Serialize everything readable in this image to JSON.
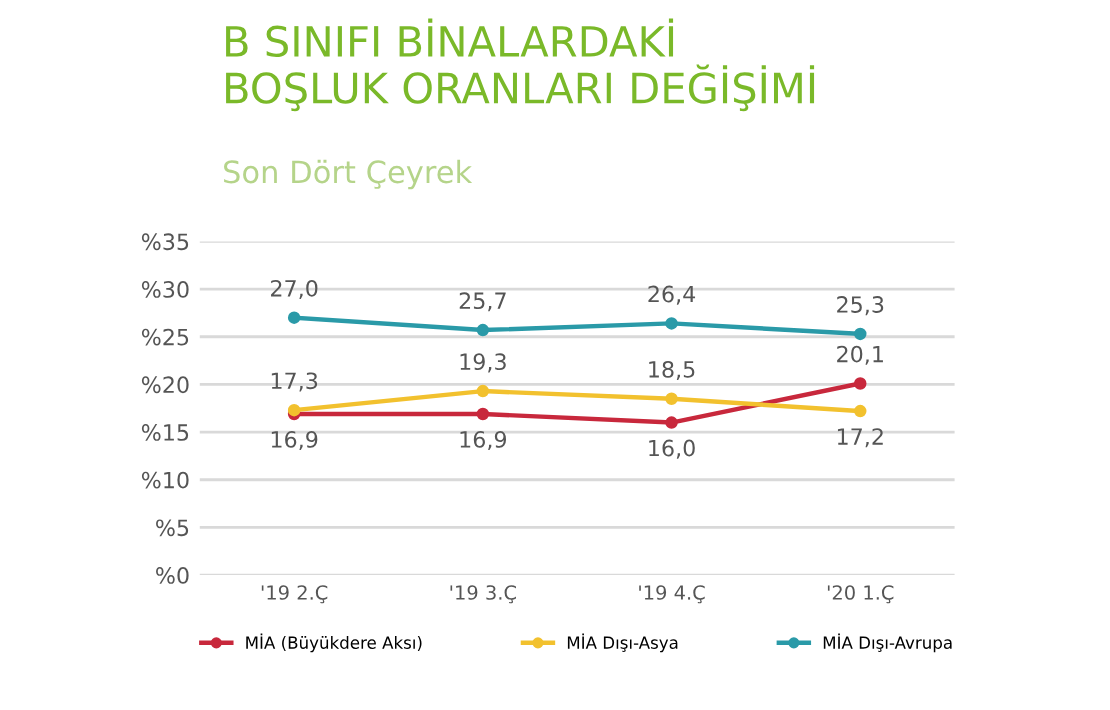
{
  "chart_data": {
    "type": "line",
    "title": "B SINIFI BİNALARDAKİ\nBOŞLUK ORANLARI DEĞİŞİMİ",
    "subtitle": "Son Dört Çeyrek",
    "categories": [
      "'19 2.Ç",
      "'19 3.Ç",
      "'19 4.Ç",
      "'20 1.Ç"
    ],
    "series": [
      {
        "name": "MİA (Büyükdere Aksı)",
        "color": "#c8283c",
        "values": [
          16.9,
          16.9,
          16.0,
          20.1
        ],
        "value_labels": [
          "16,9",
          "16,9",
          "16,0",
          "20,1"
        ]
      },
      {
        "name": "MİA Dışı-Asya",
        "color": "#f2c12e",
        "values": [
          17.3,
          19.3,
          18.5,
          17.2
        ],
        "value_labels": [
          "17,3",
          "19,3",
          "18,5",
          "17,2"
        ]
      },
      {
        "name": "MİA Dışı-Avrupa",
        "color": "#2a9aa8",
        "values": [
          27.0,
          25.7,
          26.4,
          25.3
        ],
        "value_labels": [
          "27,0",
          "25,7",
          "26,4",
          "25,3"
        ]
      }
    ],
    "ylim": [
      0,
      35
    ],
    "yticks": [
      {
        "value": 0,
        "label": "%0"
      },
      {
        "value": 5,
        "label": "%5"
      },
      {
        "value": 10,
        "label": "%10"
      },
      {
        "value": 15,
        "label": "%15"
      },
      {
        "value": 20,
        "label": "%20"
      },
      {
        "value": 25,
        "label": "%25"
      },
      {
        "value": 30,
        "label": "%30"
      },
      {
        "value": 35,
        "label": "%35"
      }
    ],
    "grid": "y",
    "legend": "bottom",
    "marker": "circle",
    "line_style": "solid"
  }
}
